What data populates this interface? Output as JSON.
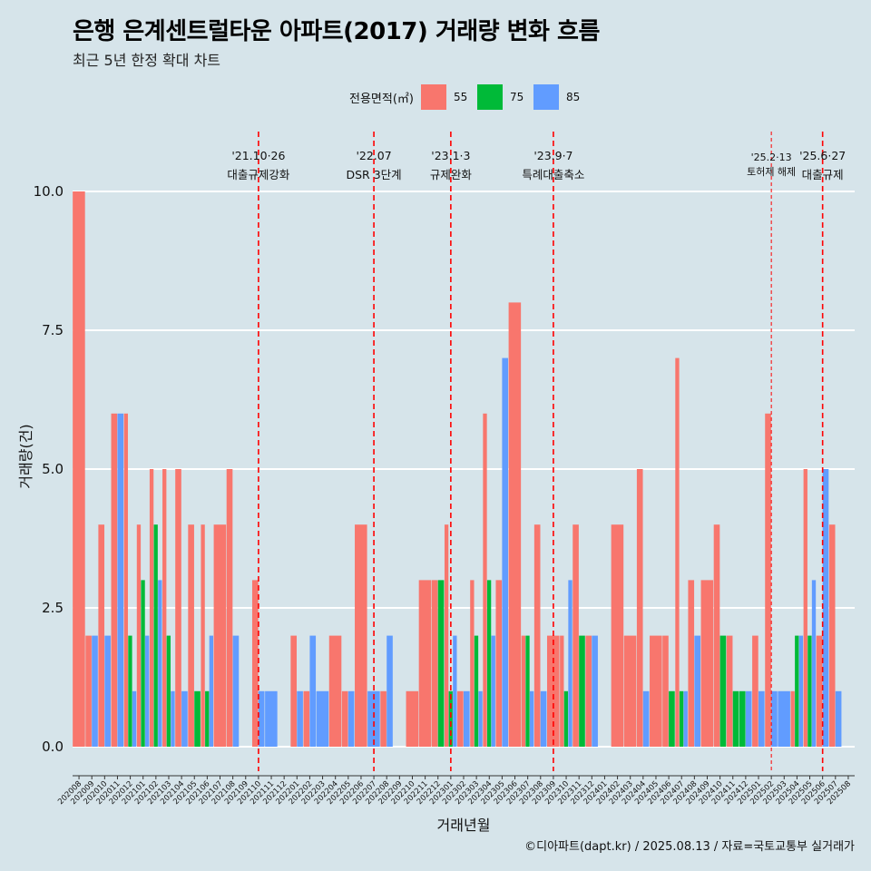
{
  "chart_data": {
    "type": "bar",
    "title": "은행 은계센트럴타운 아파트(2017) 거래량 변화 흐름",
    "subtitle": "최근 5년 한정 확대 차트",
    "xlabel": "거래년월",
    "ylabel": "거래량(건)",
    "ylim": [
      0,
      10
    ],
    "yticks": [
      "0.0",
      "2.5",
      "5.0",
      "7.5",
      "10.0"
    ],
    "legend_title": "전용면적(㎡)",
    "legend_position": "top",
    "series_names": [
      "55",
      "75",
      "85"
    ],
    "colors": [
      "#f8766d",
      "#00ba38",
      "#619cff"
    ],
    "grid": true,
    "categories": [
      "202008",
      "202009",
      "202010",
      "202011",
      "202012",
      "202101",
      "202102",
      "202103",
      "202104",
      "202105",
      "202106",
      "202107",
      "202108",
      "202109",
      "202110",
      "202111",
      "202112",
      "202201",
      "202202",
      "202203",
      "202204",
      "202205",
      "202206",
      "202207",
      "202208",
      "202209",
      "202210",
      "202211",
      "202212",
      "202301",
      "202302",
      "202303",
      "202304",
      "202305",
      "202306",
      "202307",
      "202308",
      "202309",
      "202310",
      "202311",
      "202312",
      "202401",
      "202402",
      "202403",
      "202404",
      "202405",
      "202406",
      "202407",
      "202408",
      "202409",
      "202410",
      "202411",
      "202412",
      "202501",
      "202502",
      "202503",
      "202504",
      "202505",
      "202506",
      "202507",
      "202508"
    ],
    "bars": [
      {
        "month": "202008",
        "values": [
          {
            "s": "55",
            "v": 10
          }
        ]
      },
      {
        "month": "202009",
        "values": [
          {
            "s": "55",
            "v": 2
          },
          {
            "s": "85",
            "v": 2
          }
        ]
      },
      {
        "month": "202010",
        "values": [
          {
            "s": "55",
            "v": 4
          },
          {
            "s": "85",
            "v": 2
          }
        ]
      },
      {
        "month": "202011",
        "values": [
          {
            "s": "55",
            "v": 6
          },
          {
            "s": "85",
            "v": 6
          }
        ]
      },
      {
        "month": "202012",
        "values": [
          {
            "s": "55",
            "v": 6
          },
          {
            "s": "75",
            "v": 2
          },
          {
            "s": "85",
            "v": 1
          }
        ]
      },
      {
        "month": "202101",
        "values": [
          {
            "s": "55",
            "v": 4
          },
          {
            "s": "75",
            "v": 3
          },
          {
            "s": "85",
            "v": 2
          }
        ]
      },
      {
        "month": "202102",
        "values": [
          {
            "s": "55",
            "v": 5
          },
          {
            "s": "75",
            "v": 4
          },
          {
            "s": "85",
            "v": 3
          }
        ]
      },
      {
        "month": "202103",
        "values": [
          {
            "s": "55",
            "v": 5
          },
          {
            "s": "75",
            "v": 2
          },
          {
            "s": "85",
            "v": 1
          }
        ]
      },
      {
        "month": "202104",
        "values": [
          {
            "s": "55",
            "v": 5
          },
          {
            "s": "85",
            "v": 1
          }
        ]
      },
      {
        "month": "202105",
        "values": [
          {
            "s": "55",
            "v": 4
          },
          {
            "s": "75",
            "v": 1
          }
        ]
      },
      {
        "month": "202106",
        "values": [
          {
            "s": "55",
            "v": 4
          },
          {
            "s": "75",
            "v": 1
          },
          {
            "s": "85",
            "v": 2
          }
        ]
      },
      {
        "month": "202107",
        "values": [
          {
            "s": "55",
            "v": 4
          }
        ]
      },
      {
        "month": "202108",
        "values": [
          {
            "s": "55",
            "v": 5
          },
          {
            "s": "85",
            "v": 2
          }
        ]
      },
      {
        "month": "202109",
        "values": []
      },
      {
        "month": "202110",
        "values": [
          {
            "s": "55",
            "v": 3
          },
          {
            "s": "85",
            "v": 1
          }
        ]
      },
      {
        "month": "202111",
        "values": [
          {
            "s": "85",
            "v": 1
          }
        ]
      },
      {
        "month": "202112",
        "values": []
      },
      {
        "month": "202201",
        "values": [
          {
            "s": "55",
            "v": 2
          },
          {
            "s": "85",
            "v": 1
          }
        ]
      },
      {
        "month": "202202",
        "values": [
          {
            "s": "55",
            "v": 1
          },
          {
            "s": "85",
            "v": 2
          }
        ]
      },
      {
        "month": "202203",
        "values": [
          {
            "s": "85",
            "v": 1
          }
        ]
      },
      {
        "month": "202204",
        "values": [
          {
            "s": "55",
            "v": 2
          }
        ]
      },
      {
        "month": "202205",
        "values": [
          {
            "s": "55",
            "v": 1
          },
          {
            "s": "85",
            "v": 1
          }
        ]
      },
      {
        "month": "202206",
        "values": [
          {
            "s": "55",
            "v": 4
          }
        ]
      },
      {
        "month": "202207",
        "values": [
          {
            "s": "85",
            "v": 1
          }
        ]
      },
      {
        "month": "202208",
        "values": [
          {
            "s": "55",
            "v": 1
          },
          {
            "s": "85",
            "v": 2
          }
        ]
      },
      {
        "month": "202209",
        "values": []
      },
      {
        "month": "202210",
        "values": [
          {
            "s": "55",
            "v": 1
          }
        ]
      },
      {
        "month": "202211",
        "values": [
          {
            "s": "55",
            "v": 3
          }
        ]
      },
      {
        "month": "202212",
        "values": [
          {
            "s": "55",
            "v": 3
          },
          {
            "s": "75",
            "v": 3
          }
        ]
      },
      {
        "month": "202301",
        "values": [
          {
            "s": "55",
            "v": 4
          },
          {
            "s": "75",
            "v": 1
          },
          {
            "s": "85",
            "v": 2
          }
        ]
      },
      {
        "month": "202302",
        "values": [
          {
            "s": "55",
            "v": 1
          },
          {
            "s": "85",
            "v": 1
          }
        ]
      },
      {
        "month": "202303",
        "values": [
          {
            "s": "55",
            "v": 3
          },
          {
            "s": "75",
            "v": 2
          },
          {
            "s": "85",
            "v": 1
          }
        ]
      },
      {
        "month": "202304",
        "values": [
          {
            "s": "55",
            "v": 6
          },
          {
            "s": "75",
            "v": 3
          },
          {
            "s": "85",
            "v": 2
          }
        ]
      },
      {
        "month": "202305",
        "values": [
          {
            "s": "55",
            "v": 3
          },
          {
            "s": "85",
            "v": 7
          }
        ]
      },
      {
        "month": "202306",
        "values": [
          {
            "s": "55",
            "v": 8
          }
        ]
      },
      {
        "month": "202307",
        "values": [
          {
            "s": "55",
            "v": 2
          },
          {
            "s": "75",
            "v": 2
          },
          {
            "s": "85",
            "v": 1
          }
        ]
      },
      {
        "month": "202308",
        "values": [
          {
            "s": "55",
            "v": 4
          },
          {
            "s": "85",
            "v": 1
          }
        ]
      },
      {
        "month": "202309",
        "values": [
          {
            "s": "55",
            "v": 2
          }
        ]
      },
      {
        "month": "202310",
        "values": [
          {
            "s": "55",
            "v": 2
          },
          {
            "s": "75",
            "v": 1
          },
          {
            "s": "85",
            "v": 3
          }
        ]
      },
      {
        "month": "202311",
        "values": [
          {
            "s": "55",
            "v": 4
          },
          {
            "s": "75",
            "v": 2
          }
        ]
      },
      {
        "month": "202312",
        "values": [
          {
            "s": "55",
            "v": 2
          },
          {
            "s": "85",
            "v": 2
          }
        ]
      },
      {
        "month": "202401",
        "values": []
      },
      {
        "month": "202402",
        "values": [
          {
            "s": "55",
            "v": 4
          }
        ]
      },
      {
        "month": "202403",
        "values": [
          {
            "s": "55",
            "v": 2
          }
        ]
      },
      {
        "month": "202404",
        "values": [
          {
            "s": "55",
            "v": 5
          },
          {
            "s": "85",
            "v": 1
          }
        ]
      },
      {
        "month": "202405",
        "values": [
          {
            "s": "55",
            "v": 2
          }
        ]
      },
      {
        "month": "202406",
        "values": [
          {
            "s": "55",
            "v": 2
          },
          {
            "s": "75",
            "v": 1
          }
        ]
      },
      {
        "month": "202407",
        "values": [
          {
            "s": "55",
            "v": 7
          },
          {
            "s": "75",
            "v": 1
          },
          {
            "s": "85",
            "v": 1
          }
        ]
      },
      {
        "month": "202408",
        "values": [
          {
            "s": "55",
            "v": 3
          },
          {
            "s": "85",
            "v": 2
          }
        ]
      },
      {
        "month": "202409",
        "values": [
          {
            "s": "55",
            "v": 3
          }
        ]
      },
      {
        "month": "202410",
        "values": [
          {
            "s": "55",
            "v": 4
          },
          {
            "s": "75",
            "v": 2
          }
        ]
      },
      {
        "month": "202411",
        "values": [
          {
            "s": "55",
            "v": 2
          },
          {
            "s": "75",
            "v": 1
          }
        ]
      },
      {
        "month": "202412",
        "values": [
          {
            "s": "75",
            "v": 1
          },
          {
            "s": "85",
            "v": 1
          }
        ]
      },
      {
        "month": "202501",
        "values": [
          {
            "s": "55",
            "v": 2
          },
          {
            "s": "85",
            "v": 1
          }
        ]
      },
      {
        "month": "202502",
        "values": [
          {
            "s": "55",
            "v": 6
          },
          {
            "s": "85",
            "v": 1
          }
        ]
      },
      {
        "month": "202503",
        "values": [
          {
            "s": "85",
            "v": 1
          }
        ]
      },
      {
        "month": "202504",
        "values": [
          {
            "s": "55",
            "v": 1
          },
          {
            "s": "75",
            "v": 2
          },
          {
            "s": "85",
            "v": 2
          }
        ]
      },
      {
        "month": "202505",
        "values": [
          {
            "s": "55",
            "v": 5
          },
          {
            "s": "75",
            "v": 2
          },
          {
            "s": "85",
            "v": 3
          }
        ]
      },
      {
        "month": "202506",
        "values": [
          {
            "s": "55",
            "v": 2
          },
          {
            "s": "85",
            "v": 5
          }
        ]
      },
      {
        "month": "202507",
        "values": [
          {
            "s": "55",
            "v": 4
          },
          {
            "s": "85",
            "v": 1
          }
        ]
      },
      {
        "month": "202508",
        "values": []
      }
    ],
    "annotations": [
      {
        "month": "202110",
        "date": "'21.10·26",
        "label": "대출규제강화",
        "style": "bold"
      },
      {
        "month": "202207",
        "date": "'22.07",
        "label": "DSR 3단계",
        "style": "bold"
      },
      {
        "month": "202301",
        "date": "'23.1·3",
        "label": "규제완화",
        "style": "bold"
      },
      {
        "month": "202309",
        "date": "'23.9·7",
        "label": "특례대출축소",
        "style": "bold"
      },
      {
        "month": "202502",
        "date": "'25.2·13",
        "label": "토허제 해제",
        "style": "thin"
      },
      {
        "month": "202506",
        "date": "'25.6·27",
        "label": "대출규제",
        "style": "bold"
      }
    ],
    "caption": "©디아파트(dapt.kr) / 2025.08.13 / 자료=국토교통부 실거래가"
  }
}
